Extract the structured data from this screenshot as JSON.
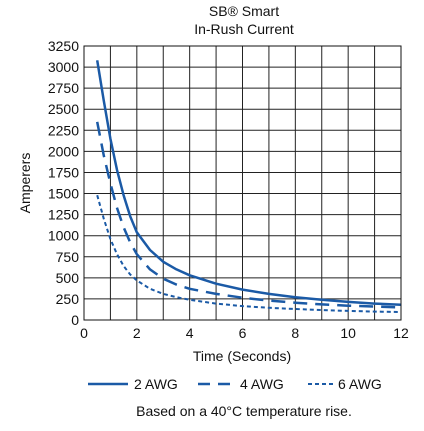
{
  "chart_data": {
    "type": "line",
    "title": "SB® Smart",
    "subtitle": "In-Rush Current",
    "xlabel": "Time (Seconds)",
    "ylabel": "Amperers",
    "xlim": [
      0,
      12
    ],
    "ylim": [
      0,
      3250
    ],
    "x_ticks": [
      0,
      2,
      4,
      6,
      8,
      10,
      12
    ],
    "y_ticks": [
      0,
      250,
      500,
      750,
      1000,
      1250,
      1500,
      1750,
      2000,
      2250,
      2500,
      2750,
      3000,
      3250
    ],
    "grid": true,
    "legend_position": "bottom",
    "note": "Based on a 40°C temperature rise.",
    "series": [
      {
        "name": "2 AWG",
        "style": "solid",
        "color": "#1b5aa6",
        "points": [
          [
            0.5,
            3080
          ],
          [
            0.75,
            2600
          ],
          [
            1,
            2150
          ],
          [
            1.25,
            1780
          ],
          [
            1.5,
            1480
          ],
          [
            1.75,
            1230
          ],
          [
            2,
            1040
          ],
          [
            2.5,
            830
          ],
          [
            3,
            690
          ],
          [
            3.5,
            600
          ],
          [
            4,
            530
          ],
          [
            5,
            430
          ],
          [
            6,
            360
          ],
          [
            7,
            310
          ],
          [
            8,
            270
          ],
          [
            9,
            240
          ],
          [
            10,
            215
          ],
          [
            11,
            195
          ],
          [
            12,
            180
          ]
        ]
      },
      {
        "name": "4 AWG",
        "style": "dashed",
        "color": "#1b5aa6",
        "points": [
          [
            0.5,
            2350
          ],
          [
            0.75,
            1950
          ],
          [
            1,
            1620
          ],
          [
            1.25,
            1330
          ],
          [
            1.5,
            1100
          ],
          [
            1.75,
            920
          ],
          [
            2,
            780
          ],
          [
            2.5,
            600
          ],
          [
            3,
            490
          ],
          [
            3.5,
            420
          ],
          [
            4,
            370
          ],
          [
            5,
            310
          ],
          [
            6,
            265
          ],
          [
            7,
            230
          ],
          [
            8,
            205
          ],
          [
            9,
            185
          ],
          [
            10,
            170
          ],
          [
            11,
            160
          ],
          [
            12,
            150
          ]
        ]
      },
      {
        "name": "6 AWG",
        "style": "dotted",
        "color": "#1b5aa6",
        "points": [
          [
            0.5,
            1480
          ],
          [
            0.75,
            1200
          ],
          [
            1,
            960
          ],
          [
            1.25,
            780
          ],
          [
            1.5,
            640
          ],
          [
            1.75,
            540
          ],
          [
            2,
            470
          ],
          [
            2.5,
            370
          ],
          [
            3,
            310
          ],
          [
            3.5,
            270
          ],
          [
            4,
            240
          ],
          [
            5,
            195
          ],
          [
            6,
            165
          ],
          [
            7,
            145
          ],
          [
            8,
            130
          ],
          [
            9,
            118
          ],
          [
            10,
            108
          ],
          [
            11,
            100
          ],
          [
            12,
            95
          ]
        ]
      }
    ]
  }
}
